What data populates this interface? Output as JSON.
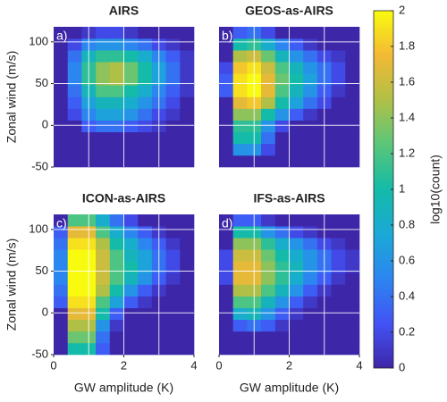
{
  "chart_data": [
    {
      "type": "heatmap",
      "title": "AIRS",
      "panel_label": "a)",
      "ylabel": "Zonal wind (m/s)",
      "xbins": [
        0,
        0.4,
        0.8,
        1.2,
        1.6,
        2,
        2.4,
        2.8,
        3.2,
        3.6,
        4
      ],
      "ybins": [
        -50,
        -36,
        -22,
        -8,
        6,
        20,
        34,
        48,
        62,
        76,
        90,
        104,
        118
      ],
      "values": [
        [
          0,
          0,
          0,
          0,
          0,
          0,
          0,
          0,
          0,
          0
        ],
        [
          0,
          0,
          0,
          0,
          0,
          0,
          0,
          0,
          0,
          0
        ],
        [
          0,
          0,
          0,
          0,
          0,
          0,
          0,
          0,
          0,
          0
        ],
        [
          0,
          0,
          0.3,
          0.4,
          0.4,
          0.3,
          0.2,
          0.1,
          0,
          0
        ],
        [
          0,
          0.2,
          0.5,
          0.7,
          0.7,
          0.6,
          0.4,
          0.2,
          0.1,
          0
        ],
        [
          0,
          0.3,
          0.7,
          0.9,
          0.9,
          0.8,
          0.6,
          0.4,
          0.2,
          0
        ],
        [
          0,
          0.4,
          0.9,
          1.2,
          1.2,
          1,
          0.8,
          0.5,
          0.3,
          0.1
        ],
        [
          0,
          0.5,
          1.1,
          1.4,
          1.5,
          1.3,
          1,
          0.7,
          0.4,
          0.1
        ],
        [
          0,
          0.5,
          1.1,
          1.4,
          1.5,
          1.3,
          1,
          0.7,
          0.4,
          0.1
        ],
        [
          0,
          0.4,
          0.9,
          1.1,
          1.1,
          1,
          0.8,
          0.5,
          0.3,
          0.1
        ],
        [
          0,
          0.2,
          0.5,
          0.6,
          0.6,
          0.5,
          0.4,
          0.2,
          0.1,
          0
        ],
        [
          0,
          0,
          0.1,
          0.2,
          0.2,
          0.1,
          0,
          0,
          0,
          0
        ]
      ],
      "xlim": [
        0,
        4
      ],
      "ylim": [
        -50,
        118
      ],
      "yticks": [
        -50,
        0,
        50,
        100
      ],
      "xgrid": [
        1,
        2,
        3
      ],
      "ygrid": [
        0,
        50,
        100
      ]
    },
    {
      "type": "heatmap",
      "title": "GEOS-as-AIRS",
      "panel_label": "b)",
      "xbins": [
        0,
        0.4,
        0.8,
        1.2,
        1.6,
        2,
        2.4,
        2.8,
        3.2,
        3.6,
        4
      ],
      "ybins": [
        -50,
        -36,
        -22,
        -8,
        6,
        20,
        34,
        48,
        62,
        76,
        90,
        104,
        118
      ],
      "values": [
        [
          0,
          0,
          0,
          0,
          0,
          0,
          0,
          0,
          0,
          0
        ],
        [
          0,
          0.6,
          0.6,
          0.2,
          0,
          0,
          0,
          0,
          0,
          0
        ],
        [
          0,
          1,
          1,
          0.4,
          0,
          0,
          0,
          0,
          0,
          0
        ],
        [
          0,
          1.1,
          1.1,
          0.6,
          0.2,
          0,
          0,
          0,
          0,
          0
        ],
        [
          0,
          1.4,
          1.4,
          1,
          0.6,
          0.3,
          0.1,
          0,
          0,
          0
        ],
        [
          0,
          1.7,
          1.8,
          1.5,
          1,
          0.7,
          0.4,
          0.2,
          0,
          0
        ],
        [
          0.3,
          1.9,
          2,
          1.7,
          1.2,
          0.9,
          0.6,
          0.3,
          0.1,
          0
        ],
        [
          0.3,
          1.9,
          2,
          1.7,
          1.3,
          1,
          0.7,
          0.4,
          0.2,
          0
        ],
        [
          0.2,
          1.8,
          1.9,
          1.6,
          1.2,
          0.9,
          0.6,
          0.4,
          0.2,
          0
        ],
        [
          0,
          1.5,
          1.6,
          1.3,
          0.9,
          0.6,
          0.4,
          0.2,
          0.1,
          0
        ],
        [
          0,
          1,
          1.1,
          0.8,
          0.5,
          0.3,
          0.1,
          0,
          0,
          0
        ],
        [
          0,
          0.3,
          0.4,
          0.2,
          0,
          0,
          0,
          0,
          0,
          0
        ]
      ],
      "xlim": [
        0,
        4
      ],
      "ylim": [
        -50,
        118
      ],
      "xgrid": [
        1,
        2,
        3
      ],
      "ygrid": [
        0,
        50,
        100
      ]
    },
    {
      "type": "heatmap",
      "title": "ICON-as-AIRS",
      "panel_label": "c)",
      "ylabel": "Zonal wind (m/s)",
      "xlabel": "GW amplitude (K)",
      "xbins": [
        0,
        0.4,
        0.8,
        1.2,
        1.6,
        2,
        2.4,
        2.8,
        3.2,
        3.6,
        4
      ],
      "ybins": [
        -50,
        -36,
        -22,
        -8,
        6,
        20,
        34,
        48,
        62,
        76,
        90,
        104,
        118
      ],
      "values": [
        [
          0,
          1,
          1,
          0.3,
          0,
          0,
          0,
          0,
          0,
          0
        ],
        [
          0,
          1.3,
          1.3,
          0.4,
          0,
          0,
          0,
          0,
          0,
          0
        ],
        [
          0,
          1.5,
          1.5,
          0.6,
          0.1,
          0,
          0,
          0,
          0,
          0
        ],
        [
          0,
          1.7,
          1.7,
          1,
          0.3,
          0,
          0,
          0,
          0,
          0
        ],
        [
          0.3,
          1.9,
          1.9,
          1.2,
          0.7,
          0.3,
          0.1,
          0,
          0,
          0
        ],
        [
          0.4,
          2,
          2,
          1.5,
          1,
          0.6,
          0.3,
          0.1,
          0,
          0
        ],
        [
          0.5,
          2,
          2,
          1.6,
          1.2,
          0.9,
          0.6,
          0.3,
          0.1,
          0
        ],
        [
          0.5,
          2,
          2,
          1.6,
          1.2,
          1,
          0.7,
          0.4,
          0.2,
          0
        ],
        [
          0.5,
          2,
          2,
          1.6,
          1.2,
          0.9,
          0.7,
          0.4,
          0.2,
          0
        ],
        [
          0.4,
          1.9,
          1.9,
          1.5,
          1,
          0.8,
          0.5,
          0.3,
          0.1,
          0
        ],
        [
          0.3,
          1.7,
          1.7,
          1.2,
          0.8,
          0.5,
          0.3,
          0.1,
          0,
          0
        ],
        [
          0,
          1.2,
          1.2,
          0.8,
          0.4,
          0.2,
          0,
          0,
          0,
          0
        ]
      ],
      "xlim": [
        0,
        4
      ],
      "ylim": [
        -50,
        118
      ],
      "xticks": [
        0,
        2,
        4
      ],
      "yticks": [
        -50,
        0,
        50,
        100
      ],
      "xgrid": [
        1,
        2,
        3
      ],
      "ygrid": [
        0,
        50,
        100
      ]
    },
    {
      "type": "heatmap",
      "title": "IFS-as-AIRS",
      "panel_label": "d)",
      "xlabel": "GW amplitude (K)",
      "xbins": [
        0,
        0.4,
        0.8,
        1.2,
        1.6,
        2,
        2.4,
        2.8,
        3.2,
        3.6,
        4
      ],
      "ybins": [
        -50,
        -36,
        -22,
        -8,
        6,
        20,
        34,
        48,
        62,
        76,
        90,
        104,
        118
      ],
      "values": [
        [
          0,
          0,
          0,
          0,
          0,
          0,
          0,
          0,
          0,
          0
        ],
        [
          0,
          0,
          0,
          0,
          0,
          0,
          0,
          0,
          0,
          0
        ],
        [
          0,
          0.3,
          0.4,
          0.3,
          0.1,
          0,
          0,
          0,
          0,
          0
        ],
        [
          0,
          0.8,
          0.9,
          0.6,
          0.3,
          0.1,
          0,
          0,
          0,
          0
        ],
        [
          0,
          1.2,
          1.2,
          0.9,
          0.6,
          0.3,
          0.1,
          0,
          0,
          0
        ],
        [
          0,
          1.5,
          1.5,
          1.2,
          0.9,
          0.6,
          0.3,
          0.1,
          0,
          0
        ],
        [
          0.2,
          1.7,
          1.7,
          1.4,
          1.1,
          0.8,
          0.5,
          0.3,
          0.1,
          0
        ],
        [
          0.2,
          1.7,
          1.7,
          1.4,
          1.1,
          0.9,
          0.6,
          0.4,
          0.2,
          0.1
        ],
        [
          0.2,
          1.6,
          1.6,
          1.3,
          1,
          0.8,
          0.6,
          0.4,
          0.2,
          0.1
        ],
        [
          0,
          1.4,
          1.4,
          1.1,
          0.8,
          0.6,
          0.4,
          0.2,
          0.1,
          0
        ],
        [
          0,
          1,
          1,
          0.6,
          0.4,
          0.2,
          0.1,
          0,
          0,
          0
        ],
        [
          0,
          0.3,
          0.3,
          0.1,
          0,
          0,
          0,
          0,
          0,
          0
        ]
      ],
      "xlim": [
        0,
        4
      ],
      "ylim": [
        -50,
        118
      ],
      "xticks": [
        0,
        2,
        4
      ],
      "xgrid": [
        1,
        2,
        3
      ],
      "ygrid": [
        0,
        50,
        100
      ]
    },
    {
      "type": "colorbar",
      "label": "log10(count)",
      "lim": [
        0,
        2
      ],
      "ticks": [
        0,
        0.2,
        0.4,
        0.6,
        0.8,
        1,
        1.2,
        1.4,
        1.6,
        1.8,
        2
      ],
      "colormap": [
        "#3e26a8",
        "#4253f5",
        "#2c86f0",
        "#1aa9d6",
        "#13bba8",
        "#5ac67a",
        "#b0c047",
        "#f3b935",
        "#f9fb0e"
      ]
    }
  ]
}
